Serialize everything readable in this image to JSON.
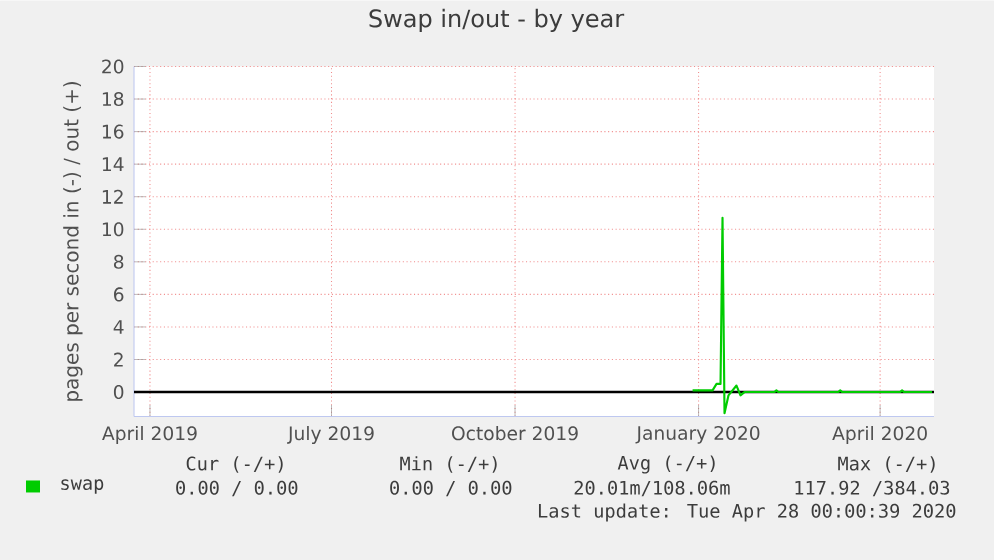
{
  "chart_data": {
    "type": "line",
    "title": "Swap in/out - by year",
    "ylabel": "pages per second in (-) / out (+)",
    "x": [
      "2019-12-29",
      "2020-01-08",
      "2020-01-10",
      "2020-01-12",
      "2020-01-13",
      "2020-01-14",
      "2020-01-16",
      "2020-01-18",
      "2020-01-20",
      "2020-01-22",
      "2020-01-24",
      "2020-02-08",
      "2020-02-09",
      "2020-02-10",
      "2020-03-11",
      "2020-03-12",
      "2020-03-13",
      "2020-04-11",
      "2020-04-12",
      "2020-04-13",
      "2020-04-27"
    ],
    "series": [
      {
        "name": "swap",
        "color": "#00cc00",
        "values": [
          0.1,
          0.1,
          0.5,
          0.5,
          10.7,
          -1.3,
          -0.2,
          0.1,
          0.4,
          -0.2,
          0,
          0,
          0.1,
          0,
          0,
          0.1,
          0,
          0,
          0.1,
          0,
          0
        ]
      }
    ],
    "xlim": [
      "2019-03-24",
      "2020-04-28"
    ],
    "xticks": [
      {
        "value": "2019-04-01",
        "label": "April 2019"
      },
      {
        "value": "2019-07-01",
        "label": "July 2019"
      },
      {
        "value": "2019-10-01",
        "label": "October 2019"
      },
      {
        "value": "2020-01-01",
        "label": "January 2020"
      },
      {
        "value": "2020-04-01",
        "label": "April 2020"
      }
    ],
    "ylim": [
      -1.5,
      20
    ],
    "yticks": [
      0,
      2,
      4,
      6,
      8,
      10,
      12,
      14,
      16,
      18,
      20
    ],
    "grid": true,
    "legend": "bottom",
    "ref_lines": [
      {
        "axis": "y",
        "value": 0,
        "color": "#000000"
      }
    ],
    "annotations": [
      "Cur (-/+)",
      "Min (-/+)",
      "Avg (-/+)",
      "Max (-/+)",
      "0.00 /   0.00",
      "0.00 /   0.00",
      "20.01m/108.06m",
      "117.92 /384.03",
      "Last update: Tue Apr 28 00:00:39 2020"
    ]
  }
}
